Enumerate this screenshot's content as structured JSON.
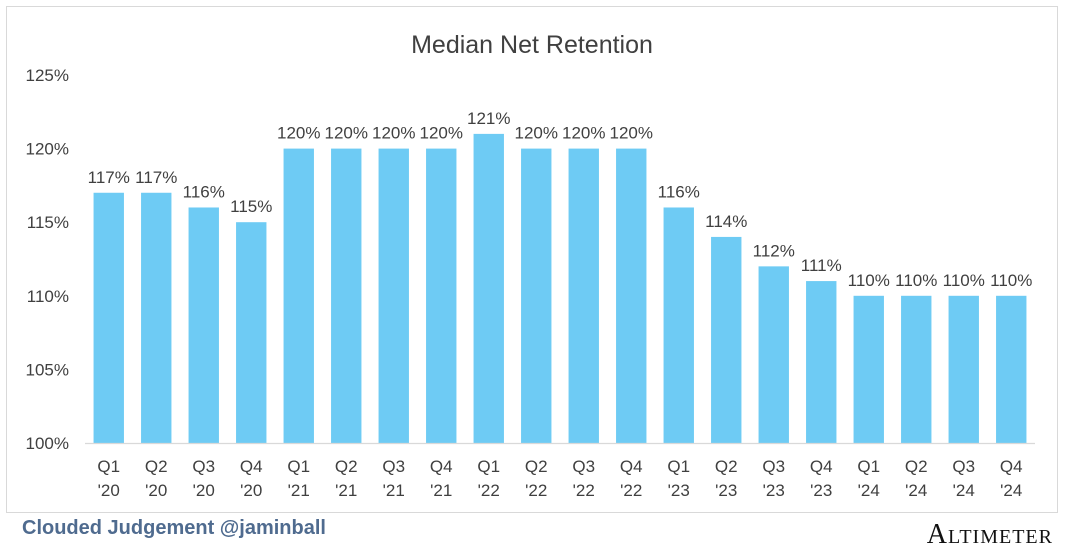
{
  "chart_data": {
    "type": "bar",
    "title": "Median Net Retention",
    "xlabel": "",
    "ylabel": "",
    "categories": [
      [
        "Q1",
        "'20"
      ],
      [
        "Q2",
        "'20"
      ],
      [
        "Q3",
        "'20"
      ],
      [
        "Q4",
        "'20"
      ],
      [
        "Q1",
        "'21"
      ],
      [
        "Q2",
        "'21"
      ],
      [
        "Q3",
        "'21"
      ],
      [
        "Q4",
        "'21"
      ],
      [
        "Q1",
        "'22"
      ],
      [
        "Q2",
        "'22"
      ],
      [
        "Q3",
        "'22"
      ],
      [
        "Q4",
        "'22"
      ],
      [
        "Q1",
        "'23"
      ],
      [
        "Q2",
        "'23"
      ],
      [
        "Q3",
        "'23"
      ],
      [
        "Q4",
        "'23"
      ],
      [
        "Q1",
        "'24"
      ],
      [
        "Q2",
        "'24"
      ],
      [
        "Q3",
        "'24"
      ],
      [
        "Q4",
        "'24"
      ]
    ],
    "values": [
      117,
      117,
      116,
      115,
      120,
      120,
      120,
      120,
      121,
      120,
      120,
      120,
      116,
      114,
      112,
      111,
      110,
      110,
      110,
      110
    ],
    "data_labels": [
      "117%",
      "117%",
      "116%",
      "115%",
      "120%",
      "120%",
      "120%",
      "120%",
      "121%",
      "120%",
      "120%",
      "120%",
      "116%",
      "114%",
      "112%",
      "111%",
      "110%",
      "110%",
      "110%",
      "110%"
    ],
    "ylim": [
      100,
      125
    ],
    "yticks": [
      100,
      105,
      110,
      115,
      120,
      125
    ],
    "ytick_labels": [
      "100%",
      "105%",
      "110%",
      "115%",
      "120%",
      "125%"
    ],
    "grid": false,
    "legend": "none",
    "bar_color": "#6ecbf4",
    "text_color": "#404040",
    "axis_color": "#d9d9d9"
  },
  "footer": {
    "source": "Clouded Judgement @jaminball",
    "source_color": "#4f6b8f",
    "brand": "Altimeter"
  }
}
